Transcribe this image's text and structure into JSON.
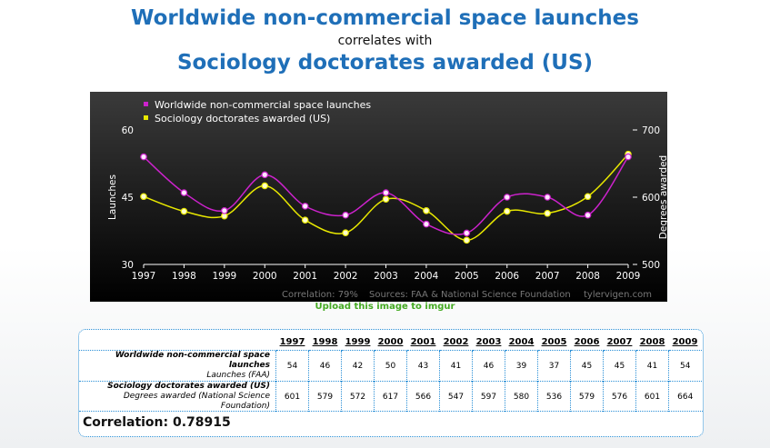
{
  "header": {
    "title1": "Worldwide non-commercial space launches",
    "subtitle": "correlates with",
    "title2": "Sociology doctorates awarded (US)"
  },
  "upload_link": "Upload this image to imgur",
  "footer": {
    "correlation_note": "Correlation: 79%",
    "sources": "Sources: FAA & National Science Foundation",
    "site": "tylervigen.com"
  },
  "table": {
    "row1_title": "Worldwide non-commercial space launches",
    "row1_sub": "Launches (FAA)",
    "row2_title": "Sociology doctorates awarded (US)",
    "row2_sub": "Degrees awarded (National Science Foundation)",
    "correlation": "Correlation: 0.78915"
  },
  "colors": {
    "launches": "#cc22cc",
    "doctorates": "#e8e800",
    "title": "#1f6fb8"
  },
  "chart_data": {
    "type": "line",
    "x": [
      "1997",
      "1998",
      "1999",
      "2000",
      "2001",
      "2002",
      "2003",
      "2004",
      "2005",
      "2006",
      "2007",
      "2008",
      "2009"
    ],
    "series": [
      {
        "name": "Worldwide non-commercial space launches",
        "axis": "left",
        "values": [
          54,
          46,
          42,
          50,
          43,
          41,
          46,
          39,
          37,
          45,
          45,
          41,
          54
        ]
      },
      {
        "name": "Sociology doctorates awarded (US)",
        "axis": "right",
        "values": [
          601,
          579,
          572,
          617,
          566,
          547,
          597,
          580,
          536,
          579,
          576,
          601,
          664
        ]
      }
    ],
    "ylabel_left": "Launches",
    "ylabel_right": "Degrees awarded",
    "ylim_left": [
      30,
      60
    ],
    "ylim_right": [
      500,
      700
    ],
    "yticks_left": [
      "30",
      "45",
      "60"
    ],
    "yticks_right": [
      "500",
      "600",
      "700"
    ],
    "legend": "top-left",
    "grid": false
  }
}
